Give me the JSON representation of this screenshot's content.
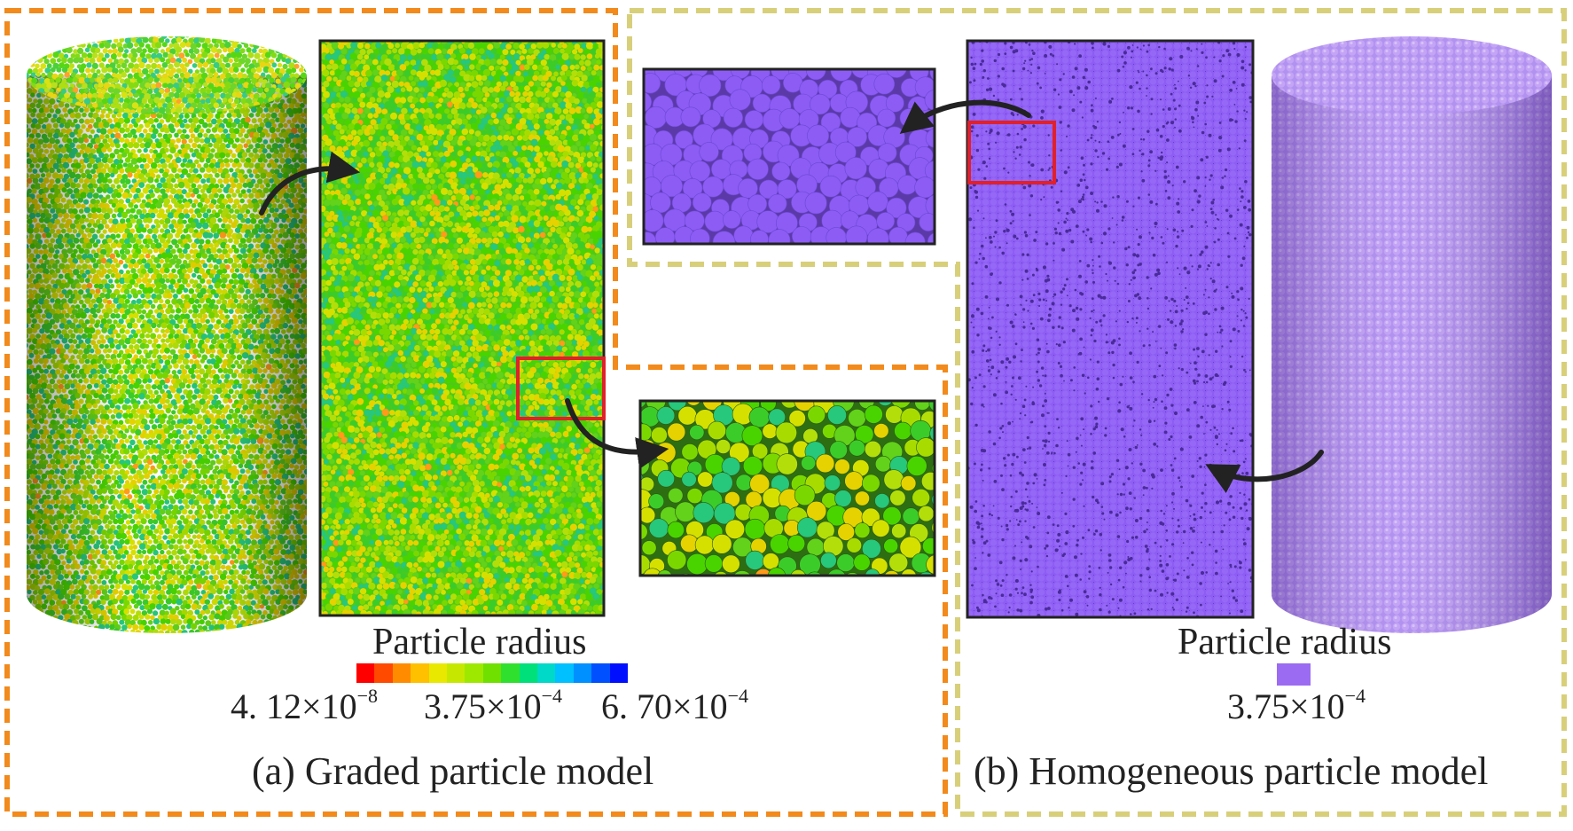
{
  "panel_a": {
    "caption": "(a)  Graded particle model",
    "legend_title": "Particle radius",
    "ticks": [
      {
        "mantissa": "4. 12",
        "times": "×",
        "base": "10",
        "exponent": "−8"
      },
      {
        "mantissa": "3.75",
        "times": "×",
        "base": "10",
        "exponent": "−4"
      },
      {
        "mantissa": "6. 70",
        "times": "×",
        "base": "10",
        "exponent": "−4"
      }
    ],
    "colorbar_colors": [
      "#ff0000",
      "#ff4a00",
      "#ff8c00",
      "#ffc000",
      "#e8e800",
      "#c6e800",
      "#9ee800",
      "#6fe000",
      "#2fe02f",
      "#00e07a",
      "#00d8c8",
      "#00c0ff",
      "#0090ff",
      "#0050ff",
      "#0010ff"
    ],
    "particle_palette": [
      "#49d400",
      "#7ad800",
      "#a8dc00",
      "#d6e000",
      "#e6d200",
      "#3ccc2a",
      "#27c77c",
      "#62d21a",
      "#b4de0a",
      "#ff9a1a"
    ],
    "border_color": "#f28a1c"
  },
  "panel_b": {
    "caption": "(b)  Homogeneous particle model",
    "legend_title": "Particle radius",
    "tick": {
      "mantissa": "3.75",
      "times": "×",
      "base": "10",
      "exponent": "−4"
    },
    "swatch_color": "#9b6bf2",
    "particle_color": "#8c5cf5",
    "cylinder_color": "#b48cf0",
    "border_color": "#d8cf7a"
  }
}
